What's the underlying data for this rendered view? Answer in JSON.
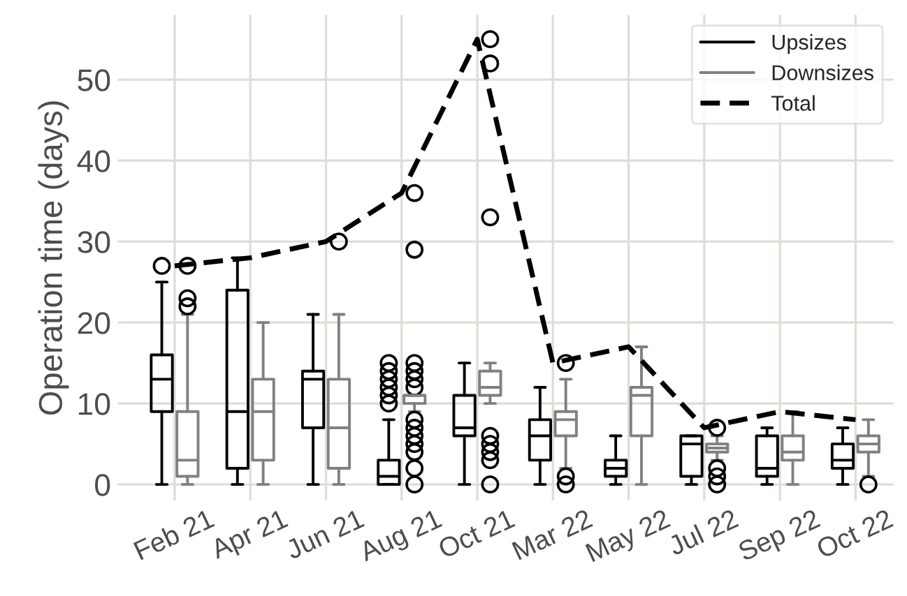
{
  "chart_data": {
    "type": "box",
    "ylabel": "Operation time (days)",
    "categories": [
      "Feb 21",
      "Apr 21",
      "Jun 21",
      "Aug 21",
      "Oct 21",
      "Mar 22",
      "May 22",
      "Jul 22",
      "Sep 22",
      "Oct 22"
    ],
    "ylim": [
      -2,
      58
    ],
    "yticks": [
      0,
      10,
      20,
      30,
      40,
      50
    ],
    "grid": true,
    "legend": "top right",
    "series": [
      {
        "name": "Upsizes",
        "color": "#000000",
        "boxes": [
          {
            "low": 0,
            "q1": 9,
            "median": 13,
            "q3": 16,
            "high": 25,
            "outliers": [
              27
            ]
          },
          {
            "low": 0,
            "q1": 2,
            "median": 9,
            "q3": 24,
            "high": 28
          },
          {
            "low": 0,
            "q1": 7,
            "median": 13,
            "q3": 14,
            "high": 21
          },
          {
            "low": 0,
            "q1": 0,
            "median": 1,
            "q3": 3,
            "high": 8,
            "outliers": [
              10,
              11,
              12,
              13,
              14,
              15
            ]
          },
          {
            "low": 0,
            "q1": 6,
            "median": 7,
            "q3": 11,
            "high": 15
          },
          {
            "low": 0,
            "q1": 3,
            "median": 6,
            "q3": 8,
            "high": 12
          },
          {
            "low": 0,
            "q1": 1,
            "median": 2,
            "q3": 3,
            "high": 6
          },
          {
            "low": 0,
            "q1": 1,
            "median": 5,
            "q3": 6,
            "high": 6
          },
          {
            "low": 0,
            "q1": 1,
            "median": 2,
            "q3": 6,
            "high": 7
          },
          {
            "low": 0,
            "q1": 2,
            "median": 3,
            "q3": 5,
            "high": 7
          }
        ]
      },
      {
        "name": "Downsizes",
        "color": "#808080",
        "boxes": [
          {
            "low": 0,
            "q1": 1,
            "median": 3,
            "q3": 9,
            "high": 21,
            "outliers": [
              22,
              23,
              27
            ]
          },
          {
            "low": 0,
            "q1": 3,
            "median": 9,
            "q3": 13,
            "high": 20
          },
          {
            "low": 0,
            "q1": 2,
            "median": 7,
            "q3": 13,
            "high": 21,
            "outliers": [
              30
            ]
          },
          {
            "low": 9,
            "q1": 10,
            "median": 11,
            "q3": 11,
            "high": 11,
            "outliers": [
              0,
              2,
              4,
              5,
              6,
              7,
              8,
              12,
              13,
              14,
              15,
              29,
              36
            ]
          },
          {
            "low": 10,
            "q1": 11,
            "median": 12,
            "q3": 14,
            "high": 15,
            "outliers": [
              0,
              3,
              4,
              5,
              6,
              33,
              52,
              55
            ]
          },
          {
            "low": 2,
            "q1": 6,
            "median": 8,
            "q3": 9,
            "high": 13,
            "outliers": [
              0,
              1,
              15
            ]
          },
          {
            "low": 0,
            "q1": 6,
            "median": 11,
            "q3": 12,
            "high": 17
          },
          {
            "low": 3,
            "q1": 4,
            "median": 4.5,
            "q3": 5,
            "high": 6,
            "outliers": [
              0,
              1,
              2,
              7
            ]
          },
          {
            "low": 0,
            "q1": 3,
            "median": 4,
            "q3": 6,
            "high": 9
          },
          {
            "low": 1,
            "q1": 4,
            "median": 5,
            "q3": 6,
            "high": 8,
            "outliers": [
              0
            ]
          }
        ]
      },
      {
        "name": "Total",
        "type": "line",
        "color": "#000000",
        "line_style": "dashed",
        "values": [
          27,
          28,
          30,
          36,
          55,
          15,
          17,
          7,
          9,
          8
        ]
      }
    ]
  }
}
